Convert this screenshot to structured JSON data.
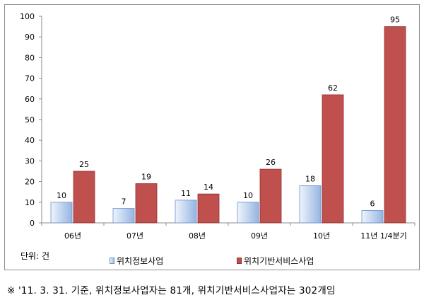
{
  "chart_data": {
    "type": "bar",
    "categories": [
      "06년",
      "07년",
      "08년",
      "09년",
      "10년",
      "11년 1/4분기"
    ],
    "series": [
      {
        "name": "위치정보사업",
        "values": [
          10,
          7,
          11,
          10,
          18,
          6
        ],
        "color": "#9dbce6"
      },
      {
        "name": "위치기반서비스사업",
        "values": [
          25,
          19,
          14,
          26,
          62,
          95
        ],
        "color": "#c0504d"
      }
    ],
    "ylim": [
      0,
      100
    ],
    "yticks": [
      0,
      10,
      20,
      30,
      40,
      50,
      60,
      70,
      80,
      90,
      100
    ],
    "grid": false,
    "legend": "bottom"
  },
  "unit_label": "단위: 건",
  "footnote": "※ '11. 3. 31. 기준, 위치정보사업자는 81개, 위치기반서비스사업자는 302개임"
}
